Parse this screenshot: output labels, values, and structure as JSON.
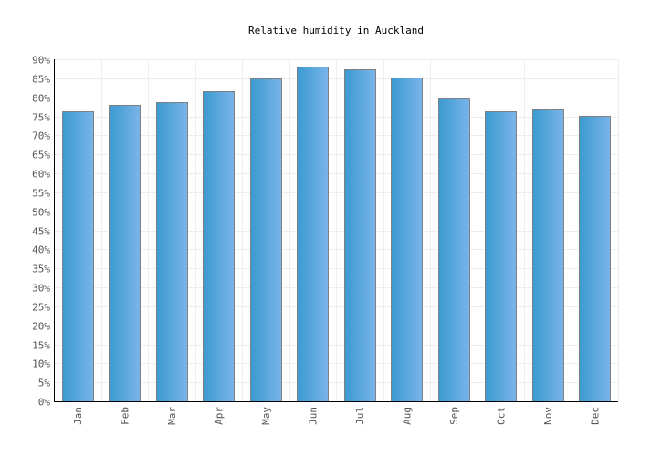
{
  "chart_data": {
    "type": "bar",
    "title": "Relative humidity in Auckland",
    "xlabel": "",
    "ylabel": "",
    "categories": [
      "Jan",
      "Feb",
      "Mar",
      "Apr",
      "May",
      "Jun",
      "Jul",
      "Aug",
      "Sep",
      "Oct",
      "Nov",
      "Dec"
    ],
    "values": [
      76.4,
      78.0,
      78.8,
      81.6,
      85.0,
      88.1,
      87.4,
      85.2,
      79.8,
      76.4,
      76.9,
      75.2
    ],
    "ylim": [
      0,
      90
    ],
    "yticks": [
      "0%",
      "5%",
      "10%",
      "15%",
      "20%",
      "25%",
      "30%",
      "35%",
      "40%",
      "45%",
      "50%",
      "55%",
      "60%",
      "65%",
      "70%",
      "75%",
      "80%",
      "85%",
      "90%"
    ],
    "grid": true,
    "bar_color_start": "#3a9ad0",
    "bar_color_end": "#7ab4ea",
    "bar_border": "#808080"
  }
}
